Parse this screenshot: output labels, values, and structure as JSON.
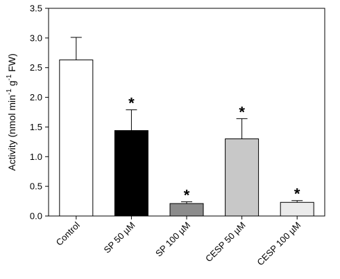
{
  "chart_data": {
    "type": "bar",
    "title": "",
    "xlabel": "",
    "ylabel": {
      "parts": [
        {
          "text": "Activity (nmol min",
          "sup": false
        },
        {
          "text": "-1",
          "sup": true
        },
        {
          "text": " g",
          "sup": false
        },
        {
          "text": "-1",
          "sup": true
        },
        {
          "text": " FW)",
          "sup": false
        }
      ]
    },
    "ylim": [
      0,
      3.5
    ],
    "yticks": [
      "0.0",
      "0.5",
      "1.0",
      "1.5",
      "2.0",
      "2.5",
      "3.0",
      "3.5"
    ],
    "grid": false,
    "categories": [
      "Control",
      "SP 50 µM",
      "SP 100 µM",
      "CESP 50 µM",
      "CESP 100 µM"
    ],
    "values": [
      2.63,
      1.44,
      0.21,
      1.3,
      0.23
    ],
    "errors": [
      0.38,
      0.35,
      0.03,
      0.34,
      0.03
    ],
    "significance": [
      "",
      "*",
      "*",
      "*",
      "*"
    ],
    "colors": [
      "#ffffff",
      "#000000",
      "#8c8c8c",
      "#c8c8c8",
      "#ebebeb"
    ]
  }
}
